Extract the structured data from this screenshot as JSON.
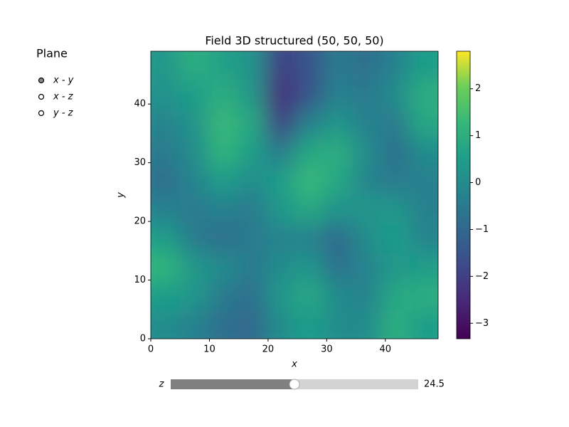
{
  "chart_data": {
    "type": "heatmap",
    "title": "Field 3D structured (50, 50, 50)",
    "x_label": "x",
    "y_label": "y",
    "xlim": [
      0,
      49
    ],
    "ylim": [
      0,
      49
    ],
    "xticks": [
      0,
      10,
      20,
      30,
      40
    ],
    "yticks": [
      0,
      10,
      20,
      30,
      40
    ],
    "colormap": "viridis",
    "clim": [
      -3.33,
      2.8
    ],
    "cticks": [
      {
        "value": -3,
        "label": "−3"
      },
      {
        "value": -2,
        "label": "−2"
      },
      {
        "value": -1,
        "label": "−1"
      },
      0,
      1,
      2
    ],
    "values": [
      [
        0.0,
        -0.3,
        -0.8,
        -1.0,
        0.0,
        0.5,
        0.0,
        0.0,
        1.0,
        0.5
      ],
      [
        0.5,
        0.3,
        -0.5,
        -0.8,
        0.3,
        0.8,
        0.0,
        -0.3,
        0.8,
        1.0
      ],
      [
        1.2,
        0.3,
        0.0,
        -0.5,
        0.0,
        0.3,
        -0.8,
        -0.2,
        0.3,
        0.5
      ],
      [
        0.5,
        -0.5,
        -0.8,
        -0.5,
        -0.2,
        -0.3,
        -1.0,
        0.0,
        0.5,
        -0.2
      ],
      [
        -0.3,
        -0.5,
        -0.3,
        -0.5,
        0.3,
        0.8,
        0.2,
        0.3,
        0.3,
        -0.3
      ],
      [
        -0.8,
        -0.2,
        0.5,
        0.0,
        0.5,
        1.3,
        0.8,
        -0.2,
        -0.5,
        -0.3
      ],
      [
        -0.5,
        0.0,
        1.2,
        0.5,
        -0.5,
        0.8,
        1.0,
        0.0,
        -0.8,
        0.0
      ],
      [
        -0.2,
        0.2,
        1.3,
        0.8,
        -2.0,
        -0.3,
        0.3,
        -0.3,
        -0.5,
        0.8
      ],
      [
        0.2,
        0.5,
        1.0,
        0.3,
        -2.5,
        -1.5,
        -0.3,
        -0.5,
        0.0,
        1.0
      ],
      [
        0.3,
        1.0,
        0.6,
        0.2,
        -2.0,
        -1.5,
        -0.5,
        -0.8,
        -0.3,
        0.5
      ]
    ]
  },
  "radio": {
    "title": "Plane",
    "options": [
      "x - y",
      "x - z",
      "y - z"
    ],
    "selected": 0
  },
  "slider": {
    "label": "z",
    "value": 24.5,
    "min": 0,
    "max": 49
  }
}
